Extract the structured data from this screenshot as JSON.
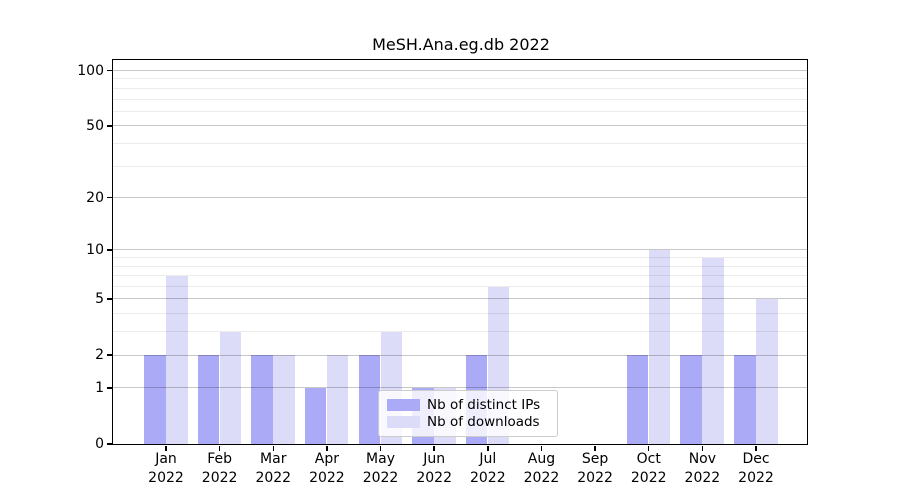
{
  "figure": {
    "title": "MeSH.Ana.eg.db 2022",
    "background": "#ffffff"
  },
  "chart_data": {
    "type": "bar",
    "title": "MeSH.Ana.eg.db 2022",
    "categories": [
      "Jan",
      "Feb",
      "Mar",
      "Apr",
      "May",
      "Jun",
      "Jul",
      "Aug",
      "Sep",
      "Oct",
      "Nov",
      "Dec"
    ],
    "category_year": "2022",
    "series": [
      {
        "name": "Nb of distinct IPs",
        "color": "#aaaaf6",
        "values": [
          2,
          2,
          2,
          1,
          2,
          1,
          2,
          0,
          0,
          2,
          2,
          2
        ]
      },
      {
        "name": "Nb of downloads",
        "color": "#dcdcf9",
        "values": [
          7,
          3,
          2,
          2,
          3,
          1,
          6,
          0,
          0,
          10,
          9,
          5
        ]
      }
    ],
    "yscale": "log1p",
    "ylim": [
      0,
      114
    ],
    "y_major_ticks": [
      0,
      1,
      2,
      5,
      10,
      20,
      50,
      100
    ],
    "y_minor_ticks": [
      3,
      4,
      6,
      7,
      8,
      9,
      30,
      40,
      60,
      70,
      80,
      90
    ],
    "grid": "horizontal",
    "legend_position": "lower-center-right",
    "axis_color": "#000000",
    "major_grid_color": "#c6c6c6",
    "minor_grid_color": "#ebebeb"
  }
}
